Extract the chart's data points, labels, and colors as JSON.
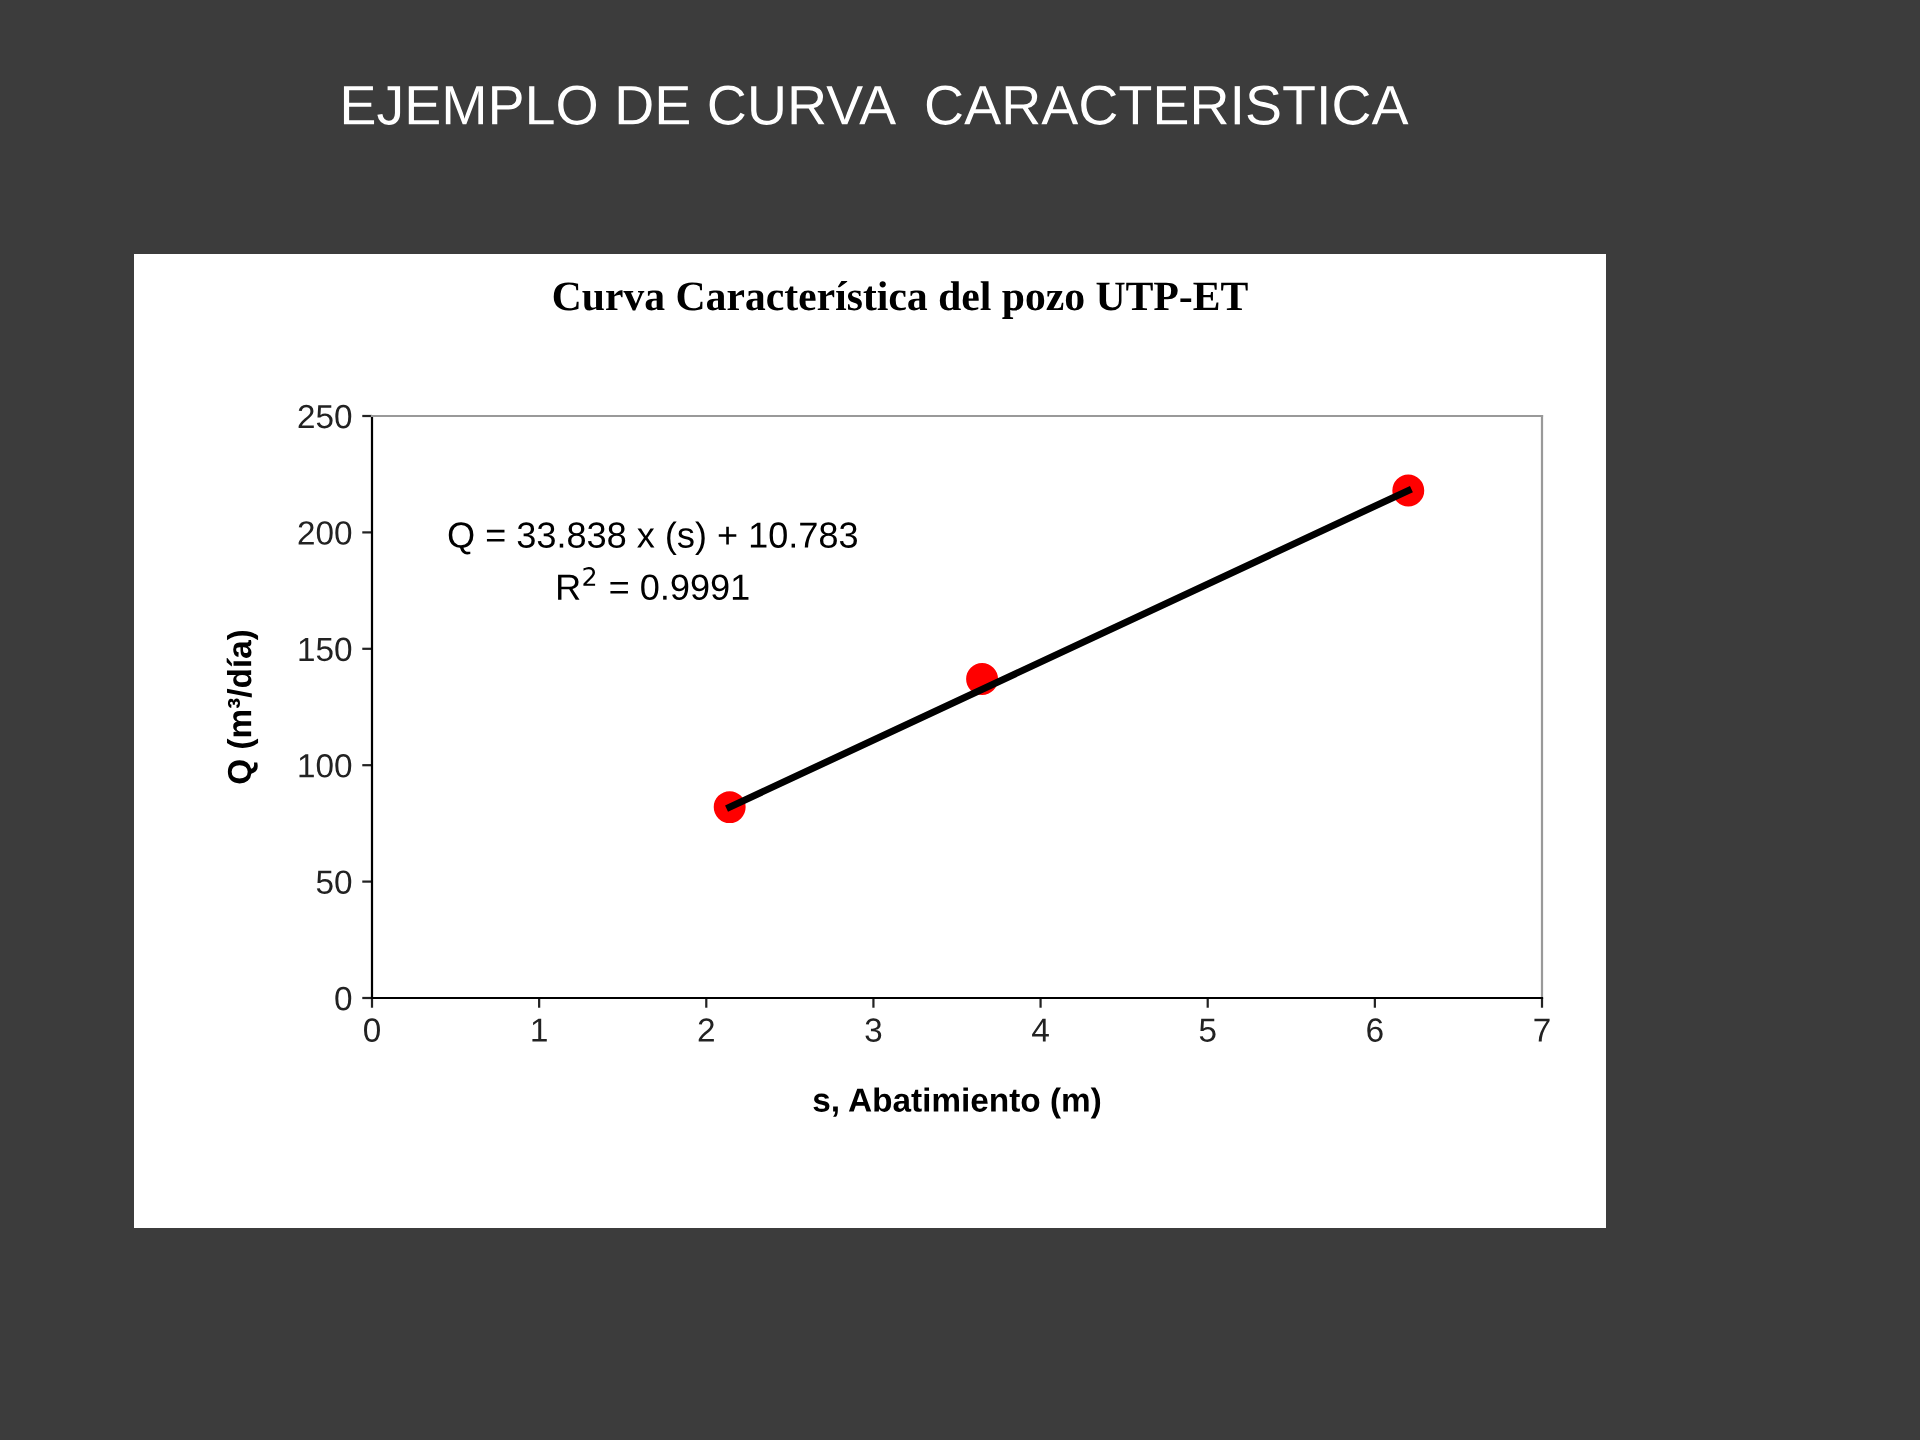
{
  "chart_data": {
    "type": "scatter",
    "title": "EJEMPLO DE CURVA  CARACTERISTICA",
    "subtitle": "Curva Característica del pozo UTP-ET",
    "xlabel": "s, Abatimiento (m)",
    "ylabel": "Q (m³/día)",
    "annotations": [
      "Q = 33.838 x (s) + 10.783",
      "R$^{2}$ = 0.9991"
    ],
    "series": [
      {
        "type": "line",
        "color": "#000000",
        "x": [
          2.14,
          6.2
        ],
        "values": [
          82,
          218
        ],
        "marker": "none",
        "line_style": "solid"
      },
      {
        "color": "#ff0000",
        "x": [
          2.14,
          3.65,
          6.2
        ],
        "values": [
          82,
          137,
          218
        ],
        "marker": "circle"
      }
    ],
    "xlim": [
      0,
      7
    ],
    "xticks": [
      0,
      1,
      2,
      3,
      4,
      5,
      6,
      7
    ],
    "ylim": [
      0,
      250
    ],
    "yticks": [
      0,
      50,
      100,
      150,
      200,
      250
    ],
    "grid": false
  }
}
